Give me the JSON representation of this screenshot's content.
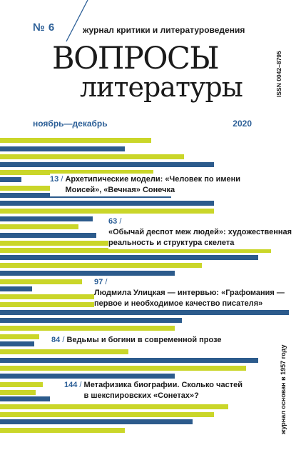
{
  "masthead": {
    "issue": "№ 6",
    "tagline": "журнал критики и литературоведения",
    "title_line1": "ВОПРОСЫ",
    "title_line2": "литературы",
    "issn": "ISSN 0042–8795",
    "dates": "ноябрь—декабрь",
    "year": "2020"
  },
  "articles": [
    {
      "page": "13",
      "line1": "Архетипические модели: «Человек по имени",
      "line2": "Моисей», «Вечная» Сонечка"
    },
    {
      "page": "63",
      "line1": "«Обычай деспот меж людей»: художественная",
      "line2": "реальность и структура скелета"
    },
    {
      "page": "97",
      "line1": "Людмила Улицкая — интервью: «Графомания —",
      "line2": "первое и необходимое качество писателя»"
    },
    {
      "page": "84",
      "line1": "Ведьмы и богини в современной прозе",
      "line2": ""
    },
    {
      "page": "144",
      "line1": "Метафизика биографии. Сколько частей",
      "line2": "в шекспировских «Сонетах»?"
    }
  ],
  "footer": {
    "founded": "журнал основан в 1957 году"
  },
  "colors": {
    "accent_blue": "#2c5b8c",
    "accent_yellow": "#cad629",
    "text": "#1a1a1a"
  }
}
